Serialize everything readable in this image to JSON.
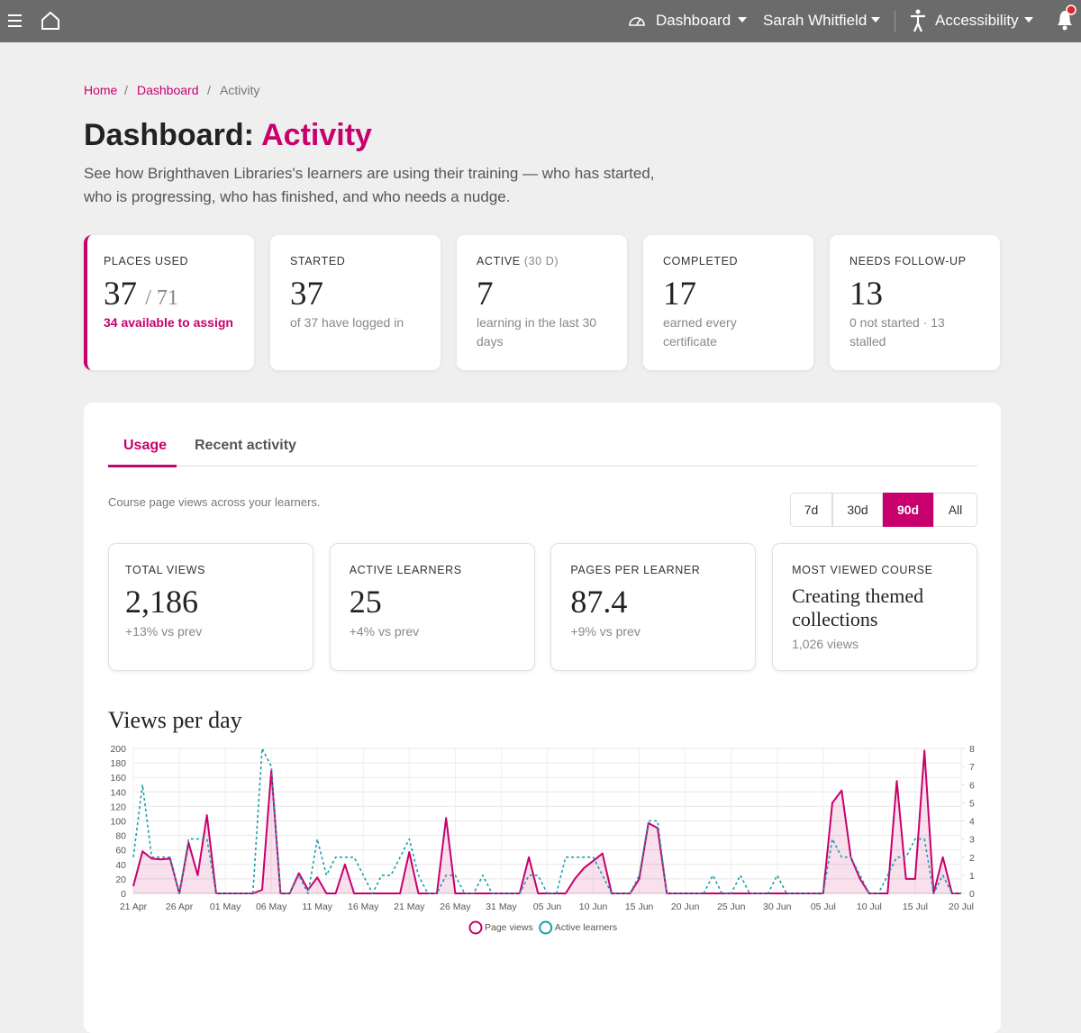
{
  "nav": {
    "items": [
      "Dashboard",
      "Sarah Whitfield",
      "Accessibility"
    ]
  },
  "breadcrumb": [
    "Home",
    "Dashboard",
    "Activity"
  ],
  "header": {
    "title": "Dashboard:",
    "title_highlight": "Activity",
    "intro": "See how Brighthaven Libraries's learners are using their training — who has started, who is progressing, who has finished, and who needs a nudge."
  },
  "stats": [
    {
      "label": "PLACES USED",
      "value": 37,
      "value_extra": "/ 71",
      "note": "34 available to assign"
    },
    {
      "label": "STARTED",
      "value": 37,
      "note": "of 37 have logged in"
    },
    {
      "label": "ACTIVE",
      "label_suffix": "(30 D)",
      "value": 7,
      "note": "learning in the last 30 days"
    },
    {
      "label": "COMPLETED",
      "value": 17,
      "note": "earned every certificate"
    },
    {
      "label": "NEEDS FOLLOW-UP",
      "value": 13,
      "note": "0 not started · 13 stalled"
    }
  ],
  "tabs": {
    "items": [
      "Usage",
      "Recent activity"
    ],
    "active": 0
  },
  "caption": "Course page views across your learners.",
  "ranges": {
    "items": [
      "7d",
      "30d",
      "90d",
      "All"
    ],
    "active": 2
  },
  "metrics": [
    {
      "label": "TOTAL VIEWS",
      "value": "2,186",
      "note": "+13% vs prev"
    },
    {
      "label": "ACTIVE LEARNERS",
      "value": 25,
      "note": "+4% vs prev"
    },
    {
      "label": "PAGES PER LEARNER",
      "value": 87.4,
      "note": "+9% vs prev"
    },
    {
      "label": "MOST VIEWED COURSE",
      "value": "Creating themed collections",
      "note": "1,026 views"
    }
  ],
  "chart_data": {
    "type": "line",
    "title": "Views per day",
    "categories": [
      "21 Apr",
      null,
      null,
      null,
      null,
      "26 Apr",
      null,
      null,
      null,
      null,
      "01 May",
      null,
      null,
      null,
      null,
      "06 May",
      null,
      null,
      null,
      null,
      "11 May",
      null,
      null,
      null,
      null,
      "16 May",
      null,
      null,
      null,
      null,
      "21 May",
      null,
      null,
      null,
      null,
      "26 May",
      null,
      null,
      null,
      null,
      "31 May",
      null,
      null,
      null,
      null,
      "05 Jun",
      null,
      null,
      null,
      null,
      "10 Jun",
      null,
      null,
      null,
      null,
      "15 Jun",
      null,
      null,
      null,
      null,
      "20 Jun",
      null,
      null,
      null,
      null,
      "25 Jun",
      null,
      null,
      null,
      null,
      "30 Jun",
      null,
      null,
      null,
      null,
      "05 Jul",
      null,
      null,
      null,
      null,
      "10 Jul",
      null,
      null,
      null,
      null,
      "15 Jul",
      null,
      null,
      null,
      null,
      "20 Jul"
    ],
    "series": [
      {
        "name": "Page views",
        "color": "#c8006e",
        "fill": true,
        "values": [
          10,
          58,
          48,
          47,
          48,
          0,
          70,
          25,
          108,
          0,
          0,
          0,
          0,
          0,
          5,
          170,
          0,
          0,
          28,
          5,
          22,
          0,
          0,
          40,
          0,
          0,
          0,
          0,
          0,
          0,
          57,
          0,
          0,
          0,
          104,
          0,
          0,
          0,
          0,
          0,
          0,
          0,
          0,
          50,
          0,
          0,
          0,
          0,
          20,
          35,
          45,
          55,
          0,
          0,
          0,
          20,
          97,
          90,
          0,
          0,
          0,
          0,
          0,
          0,
          0,
          0,
          0,
          0,
          0,
          0,
          0,
          0,
          0,
          0,
          0,
          0,
          125,
          142,
          50,
          20,
          0,
          0,
          0,
          155,
          20,
          20,
          197,
          0,
          50,
          0,
          0
        ]
      },
      {
        "name": "Active learners",
        "color": "#1a9ea8",
        "axis": "y2",
        "dashed": true,
        "values": [
          2,
          6,
          2,
          2,
          2,
          0,
          3,
          3,
          3,
          0,
          0,
          0,
          0,
          0,
          8,
          7,
          0,
          0,
          1,
          0,
          3,
          1,
          2,
          2,
          2,
          1,
          0,
          1,
          1,
          2,
          3,
          1,
          0,
          0,
          1,
          1,
          0,
          0,
          1,
          0,
          0,
          0,
          0,
          1,
          1,
          0,
          0,
          2,
          2,
          2,
          2,
          1,
          0,
          0,
          0,
          1,
          4,
          4,
          0,
          0,
          0,
          0,
          0,
          1,
          0,
          0,
          1,
          0,
          0,
          0,
          1,
          0,
          0,
          0,
          0,
          0,
          3,
          2,
          2,
          1,
          0,
          0,
          1,
          2,
          2,
          3,
          3,
          0,
          1,
          0,
          0
        ]
      }
    ],
    "ylim": [
      0,
      200
    ],
    "yticks": [
      0,
      20,
      40,
      60,
      80,
      100,
      120,
      140,
      160,
      180,
      200
    ],
    "y2lim": [
      0,
      8
    ],
    "y2ticks": [
      0,
      1,
      2,
      3,
      4,
      5,
      6,
      7,
      8
    ],
    "grid": true,
    "legend": "bottom"
  }
}
